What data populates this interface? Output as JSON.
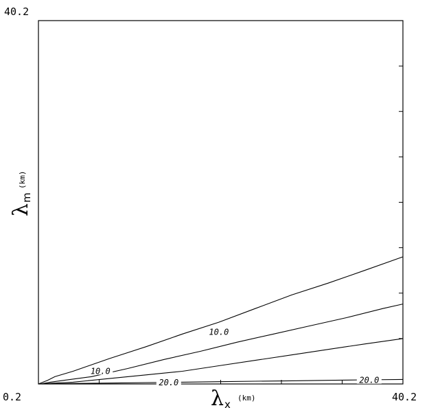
{
  "chart_data": {
    "type": "line",
    "subtype": "contour",
    "xlim": [
      0.2,
      40.2
    ],
    "ylim": [
      0.2,
      40.2
    ],
    "x_tick_labels": [
      "0.2",
      "40.2"
    ],
    "y_tick_labels": [
      "40.2"
    ],
    "xlabel": {
      "symbol": "λ",
      "subscript": "x",
      "unit": "(km)"
    },
    "ylabel": {
      "symbol": "λ",
      "subscript": "m",
      "unit": "(km)"
    },
    "x_tick_count": 7,
    "y_tick_count": 9,
    "grid": false,
    "series": [
      {
        "x": [
          0.2,
          1.2,
          2.0,
          4.0,
          8.0,
          12.0,
          16.0,
          20.0,
          24.0,
          28.0,
          32.0,
          36.0,
          40.2
        ],
        "y": [
          0.2,
          0.6,
          1.0,
          1.6,
          3.0,
          4.3,
          5.7,
          7.0,
          8.5,
          10.0,
          11.3,
          12.7,
          14.2
        ]
      },
      {
        "x": [
          0.4,
          1.5,
          3.0,
          6.0,
          10.0,
          14.0,
          18.0,
          22.0,
          26.0,
          30.0,
          34.0,
          38.0,
          40.2
        ],
        "y": [
          0.2,
          0.4,
          0.6,
          1.0,
          1.9,
          2.9,
          3.8,
          4.8,
          5.7,
          6.6,
          7.5,
          8.5,
          9.0
        ]
      },
      {
        "x": [
          0.5,
          2.0,
          4.0,
          8.0,
          12.0,
          16.0,
          20.0,
          24.0,
          28.0,
          32.0,
          36.0,
          40.2
        ],
        "y": [
          0.2,
          0.3,
          0.4,
          0.8,
          1.2,
          1.6,
          2.2,
          2.8,
          3.4,
          4.0,
          4.6,
          5.2
        ]
      },
      {
        "x": [
          1.0,
          4.0,
          8.0,
          12.0,
          16.0,
          20.0,
          24.0,
          28.0,
          32.0,
          36.0,
          40.2
        ],
        "y": [
          0.2,
          0.25,
          0.3,
          0.35,
          0.4,
          0.45,
          0.5,
          0.55,
          0.6,
          0.65,
          0.7
        ]
      }
    ],
    "contour_labels": [
      {
        "text": "10.0",
        "x": 7.0,
        "y": 1.6
      },
      {
        "text": "10.0",
        "x": 20.0,
        "y": 5.9
      },
      {
        "text": "20.0",
        "x": 14.5,
        "y": 0.35
      },
      {
        "text": "20.0",
        "x": 36.5,
        "y": 0.6
      }
    ]
  }
}
